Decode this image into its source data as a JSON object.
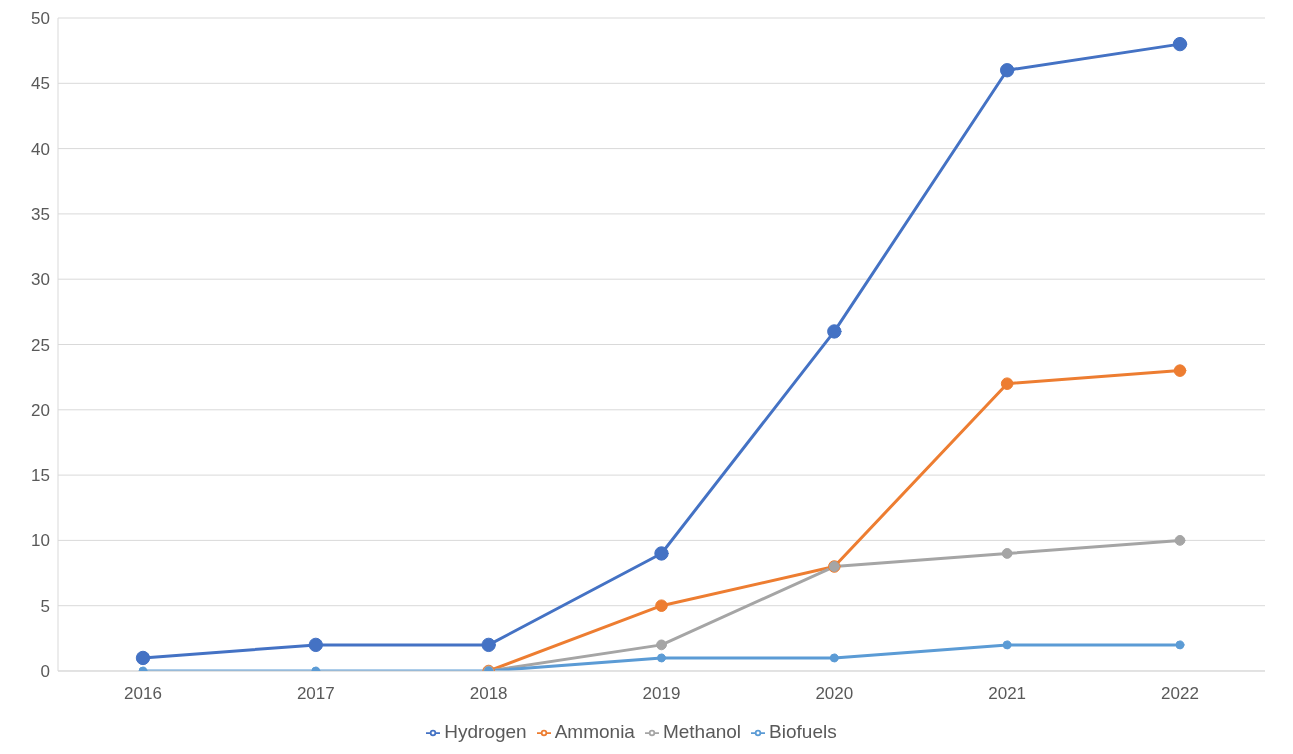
{
  "chart_data": {
    "type": "line",
    "categories": [
      "2016",
      "2017",
      "2018",
      "2019",
      "2020",
      "2021",
      "2022"
    ],
    "series": [
      {
        "name": "Hydrogen",
        "color": "#4472c4",
        "values": [
          1,
          2,
          2,
          9,
          26,
          46,
          48
        ]
      },
      {
        "name": "Ammonia",
        "color": "#ed7d31",
        "values": [
          null,
          null,
          0,
          5,
          8,
          22,
          23
        ]
      },
      {
        "name": "Methanol",
        "color": "#a5a5a5",
        "values": [
          null,
          null,
          0,
          2,
          8,
          9,
          10
        ]
      },
      {
        "name": "Biofuels",
        "color": "#5b9bd5",
        "values": [
          0,
          0,
          0,
          1,
          1,
          2,
          2
        ]
      }
    ],
    "ylim": [
      0,
      50
    ],
    "yticks": [
      0,
      5,
      10,
      15,
      20,
      25,
      30,
      35,
      40,
      45,
      50
    ],
    "grid": "y",
    "legend": "bottom",
    "marker": "circle",
    "line_style": "solid"
  }
}
